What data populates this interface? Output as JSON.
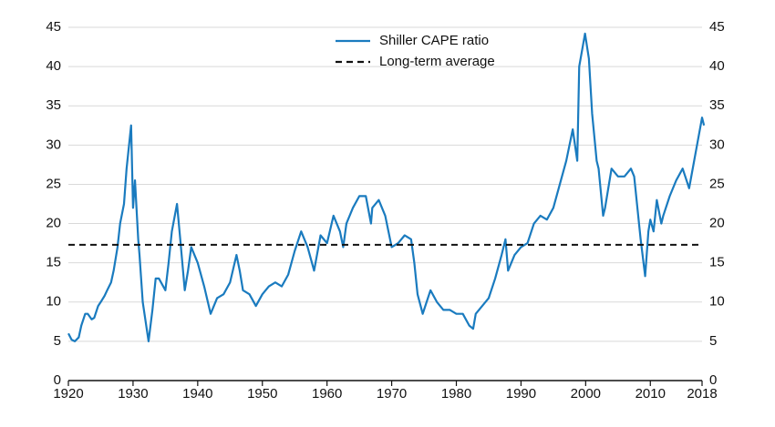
{
  "chart_data": {
    "type": "line",
    "xlim": [
      1920,
      2018
    ],
    "xticks": [
      1920,
      1930,
      1940,
      1950,
      1960,
      1970,
      1980,
      1990,
      2000,
      2010,
      2018
    ],
    "ylim": [
      0,
      45
    ],
    "yticks": [
      0,
      5,
      10,
      15,
      20,
      25,
      30,
      35,
      40,
      45
    ],
    "y2lim": [
      0,
      45
    ],
    "y2ticks": [
      0,
      5,
      10,
      15,
      20,
      25,
      30,
      35,
      40,
      45
    ],
    "grid": true,
    "legend": "top",
    "series": [
      {
        "name": "Shiller CAPE ratio",
        "color": "#1a7bbf",
        "style": "solid",
        "x": [
          1920,
          1920.5,
          1921,
          1921.6,
          1922,
          1922.6,
          1923,
          1923.6,
          1924,
          1924.6,
          1925,
          1925.6,
          1926,
          1926.6,
          1927,
          1927.6,
          1928,
          1928.6,
          1929,
          1929.7,
          1930,
          1930.3,
          1930.8,
          1931,
          1931.5,
          1932.4,
          1933,
          1933.5,
          1934,
          1935,
          1935.5,
          1936,
          1936.8,
          1937.3,
          1938,
          1938.5,
          1939,
          1939.5,
          1940,
          1941,
          1942,
          1943,
          1944,
          1945,
          1946,
          1946.5,
          1947,
          1948,
          1949,
          1950,
          1951,
          1952,
          1953,
          1954,
          1955,
          1956,
          1957,
          1958,
          1959,
          1960,
          1961,
          1962,
          1962.5,
          1963,
          1964,
          1965,
          1966,
          1966.8,
          1967,
          1968,
          1969,
          1970,
          1971,
          1972,
          1973,
          1973.5,
          1974,
          1974.8,
          1975,
          1976,
          1977,
          1978,
          1979,
          1980,
          1981,
          1982,
          1982.6,
          1983,
          1984,
          1985,
          1986,
          1987,
          1987.6,
          1988,
          1989,
          1990,
          1991,
          1992,
          1993,
          1994,
          1995,
          1996,
          1997,
          1998,
          1998.7,
          1999,
          1999.9,
          2000.5,
          2001,
          2001.7,
          2002,
          2002.7,
          2003,
          2004,
          2005,
          2006,
          2007,
          2007.5,
          2008,
          2008.5,
          2009.2,
          2009.7,
          2010,
          2010.5,
          2011,
          2011.7,
          2012,
          2013,
          2014,
          2015,
          2016,
          2017,
          2018,
          2018.3
        ],
        "values": [
          6,
          5.2,
          5,
          5.5,
          7,
          8.5,
          8.5,
          7.8,
          8,
          9.5,
          10,
          10.8,
          11.5,
          12.5,
          14,
          17,
          20,
          22.5,
          27,
          32.5,
          22,
          25.5,
          18,
          16,
          10,
          5,
          9,
          13,
          13,
          11.5,
          15,
          19,
          22.5,
          18,
          11.5,
          14,
          17,
          16,
          15,
          12,
          8.5,
          10.5,
          11,
          12.5,
          16,
          14,
          11.5,
          11,
          9.5,
          11,
          12,
          12.5,
          12,
          13.5,
          16.5,
          19,
          17,
          14,
          18.5,
          17.5,
          21,
          19,
          17,
          20,
          22,
          23.5,
          23.5,
          20,
          22,
          23,
          21,
          17,
          17.5,
          18.5,
          18,
          15,
          11,
          8.5,
          9,
          11.5,
          10,
          9,
          9,
          8.5,
          8.5,
          7,
          6.6,
          8.5,
          9.5,
          10.5,
          13,
          16,
          18,
          14,
          16,
          17,
          17.5,
          20,
          21,
          20.5,
          22,
          25,
          28,
          32,
          28,
          40,
          44.2,
          41,
          34,
          28,
          27,
          21,
          22,
          27,
          26,
          26,
          27,
          26,
          22,
          18,
          13.3,
          19,
          20.5,
          19,
          23,
          20,
          21,
          23.5,
          25.5,
          27,
          24.5,
          29,
          33.5,
          32.5
        ]
      },
      {
        "name": "Long-term average",
        "color": "#111111",
        "style": "dashed",
        "x": [
          1920,
          2018
        ],
        "values": [
          17.3,
          17.3
        ]
      }
    ]
  }
}
